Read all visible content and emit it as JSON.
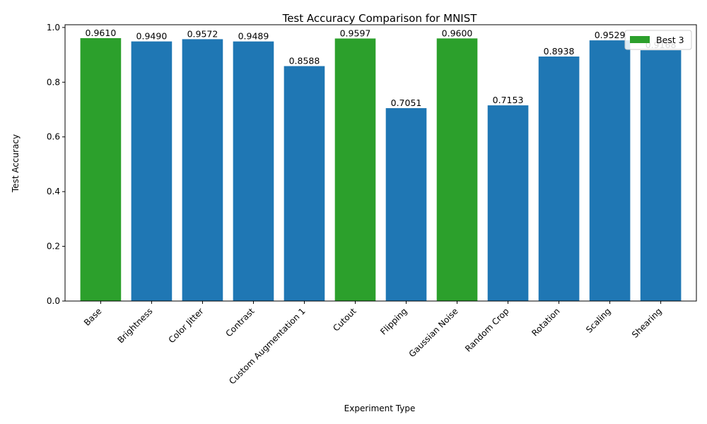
{
  "chart_data": {
    "type": "bar",
    "title": "Test Accuracy Comparison for MNIST",
    "xlabel": "Experiment Type",
    "ylabel": "Test Accuracy",
    "ylim": [
      0,
      1.01
    ],
    "yticks": [
      "0.0",
      "0.2",
      "0.4",
      "0.6",
      "0.8",
      "1.0"
    ],
    "grid": false,
    "categories": [
      "Base",
      "Brightness",
      "Color Jitter",
      "Contrast",
      "Custom Augmentation 1",
      "Cutout",
      "Flipping",
      "Gaussian Noise",
      "Random Crop",
      "Rotation",
      "Scaling",
      "Shearing"
    ],
    "values": [
      0.961,
      0.949,
      0.9572,
      0.9489,
      0.8588,
      0.9597,
      0.7051,
      0.96,
      0.7153,
      0.8938,
      0.9529,
      0.9168
    ],
    "value_labels": [
      "0.9610",
      "0.9490",
      "0.9572",
      "0.9489",
      "0.8588",
      "0.9597",
      "0.7051",
      "0.9600",
      "0.7153",
      "0.8938",
      "0.9529",
      "0.9168"
    ],
    "highlighted": [
      true,
      false,
      false,
      false,
      false,
      true,
      false,
      true,
      false,
      false,
      false,
      false
    ],
    "colors": {
      "default": "#1f77b4",
      "highlight": "#2ca02c"
    },
    "legend": {
      "position": "top-right",
      "entries": [
        {
          "label": "Best 3",
          "color": "#2ca02c"
        }
      ]
    }
  }
}
